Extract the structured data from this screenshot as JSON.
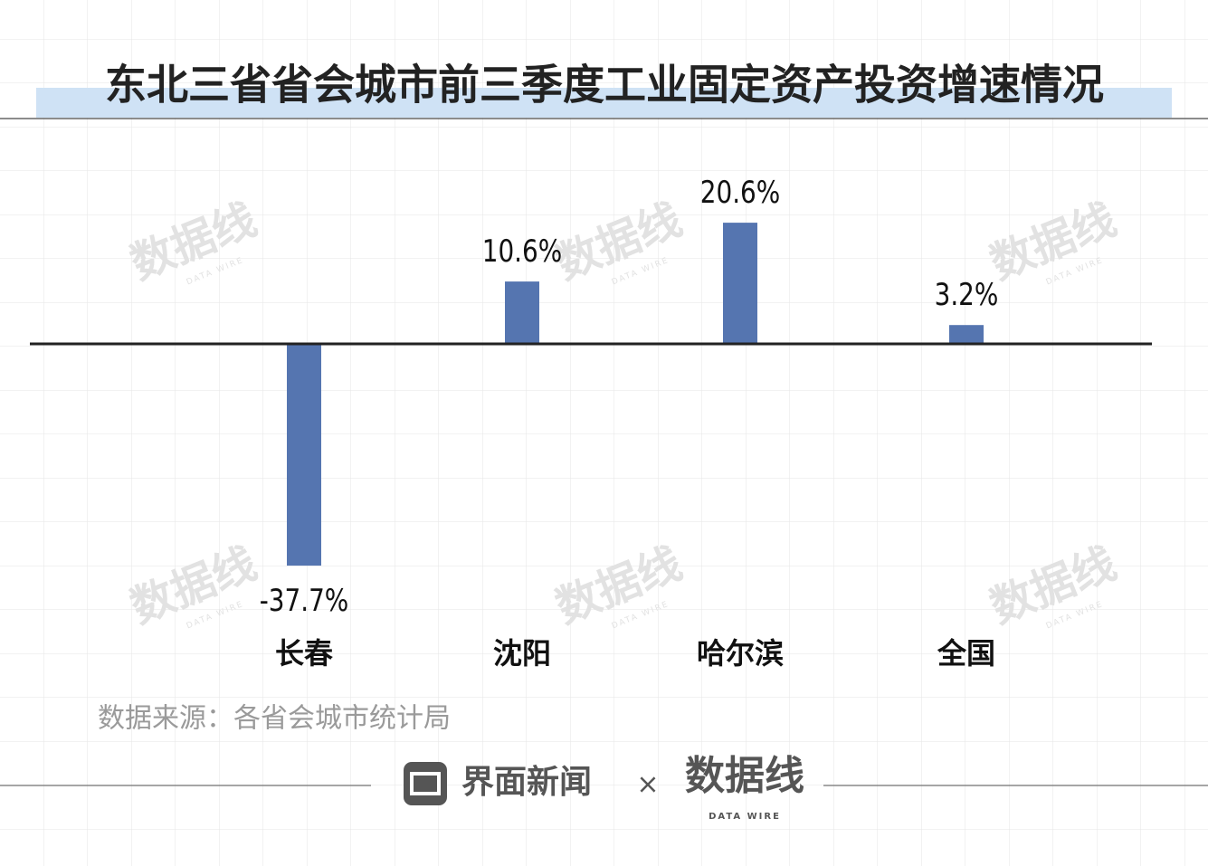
{
  "chart_data": {
    "type": "bar",
    "title": "东北三省省会城市前三季度工业固定资产投资增速情况",
    "categories": [
      "长春",
      "沈阳",
      "哈尔滨",
      "全国"
    ],
    "values": [
      -37.7,
      10.6,
      20.6,
      3.2
    ],
    "value_labels": [
      "-37.7%",
      "10.6%",
      "20.6%",
      "3.2%"
    ],
    "color": "#5575b0",
    "source": "数据来源：各省会城市统计局"
  },
  "footer": {
    "brand1": "界面新闻",
    "times": "×",
    "brand2": "数据线",
    "brand2_sub": "DATA WIRE"
  }
}
